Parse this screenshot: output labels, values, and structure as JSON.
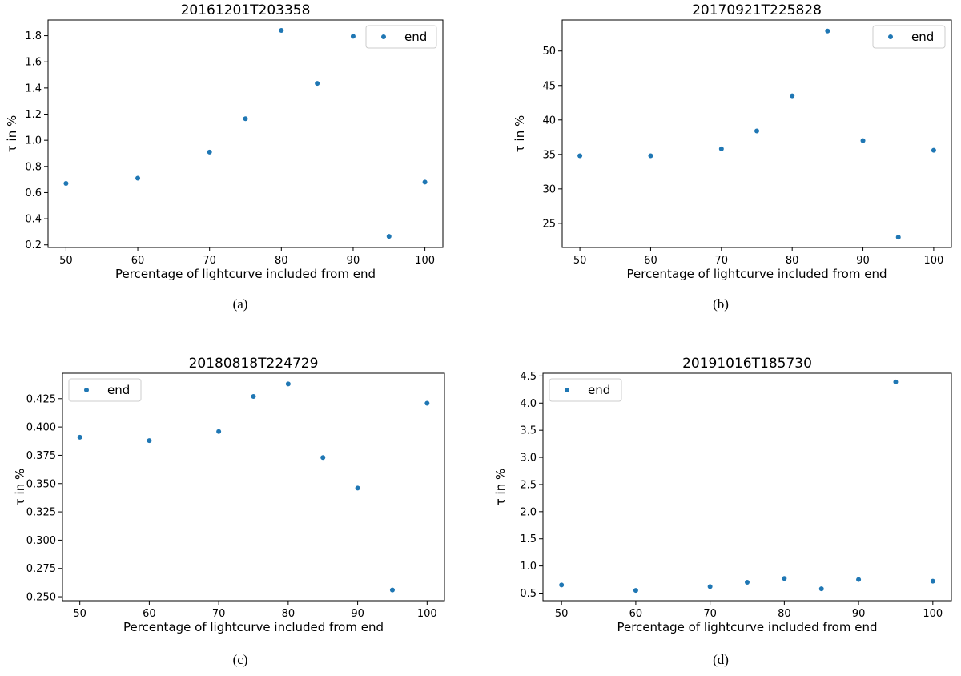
{
  "chart_data": [
    {
      "type": "scatter",
      "title": "20161201T203358",
      "xlabel": "Percentage of lightcurve included from end",
      "ylabel": "τ in %",
      "caption": "(a)",
      "legend": {
        "label": "end",
        "placement": "top-right"
      },
      "color": "#1f77b4",
      "xlim": [
        47.5,
        102.5
      ],
      "ylim": [
        0.18,
        1.92
      ],
      "xticks": [
        50,
        60,
        70,
        80,
        90,
        100
      ],
      "yticks": [
        0.2,
        0.4,
        0.6,
        0.8,
        1.0,
        1.2,
        1.4,
        1.6,
        1.8
      ],
      "ytick_labels": [
        "0.2",
        "0.4",
        "0.6",
        "0.8",
        "1.0",
        "1.2",
        "1.4",
        "1.6",
        "1.8"
      ],
      "x": [
        50,
        60,
        70,
        75,
        80,
        85,
        90,
        95,
        100
      ],
      "y": [
        0.67,
        0.71,
        0.91,
        1.165,
        1.84,
        1.435,
        1.795,
        0.265,
        0.68
      ]
    },
    {
      "type": "scatter",
      "title": "20170921T225828",
      "xlabel": "Percentage of lightcurve included from end",
      "ylabel": "τ in %",
      "caption": "(b)",
      "legend": {
        "label": "end",
        "placement": "top-right"
      },
      "color": "#1f77b4",
      "xlim": [
        47.5,
        102.5
      ],
      "ylim": [
        21.5,
        54.5
      ],
      "xticks": [
        50,
        60,
        70,
        80,
        90,
        100
      ],
      "yticks": [
        25,
        30,
        35,
        40,
        45,
        50
      ],
      "ytick_labels": [
        "25",
        "30",
        "35",
        "40",
        "45",
        "50"
      ],
      "x": [
        50,
        60,
        70,
        75,
        80,
        85,
        90,
        95,
        100
      ],
      "y": [
        34.8,
        34.8,
        35.8,
        38.4,
        43.5,
        52.9,
        37.0,
        23.0,
        35.6
      ]
    },
    {
      "type": "scatter",
      "title": "20180818T224729",
      "xlabel": "Percentage of lightcurve included from end",
      "ylabel": "τ in %",
      "caption": "(c)",
      "legend": {
        "label": "end",
        "placement": "top-left"
      },
      "color": "#1f77b4",
      "xlim": [
        47.5,
        102.5
      ],
      "ylim": [
        0.2465,
        0.4475
      ],
      "xticks": [
        50,
        60,
        70,
        80,
        90,
        100
      ],
      "yticks": [
        0.25,
        0.275,
        0.3,
        0.325,
        0.35,
        0.375,
        0.4,
        0.425
      ],
      "ytick_labels": [
        "0.250",
        "0.275",
        "0.300",
        "0.325",
        "0.350",
        "0.375",
        "0.400",
        "0.425"
      ],
      "x": [
        50,
        60,
        70,
        75,
        80,
        85,
        90,
        95,
        100
      ],
      "y": [
        0.391,
        0.388,
        0.396,
        0.427,
        0.438,
        0.373,
        0.346,
        0.256,
        0.421
      ]
    },
    {
      "type": "scatter",
      "title": "20191016T185730",
      "xlabel": "Percentage of lightcurve included from end",
      "ylabel": "τ in %",
      "caption": "(d)",
      "legend": {
        "label": "end",
        "placement": "top-left"
      },
      "color": "#1f77b4",
      "xlim": [
        47.5,
        102.5
      ],
      "ylim": [
        0.36,
        4.55
      ],
      "xticks": [
        50,
        60,
        70,
        80,
        90,
        100
      ],
      "yticks": [
        0.5,
        1.0,
        1.5,
        2.0,
        2.5,
        3.0,
        3.5,
        4.0,
        4.5
      ],
      "ytick_labels": [
        "0.5",
        "1.0",
        "1.5",
        "2.0",
        "2.5",
        "3.0",
        "3.5",
        "4.0",
        "4.5"
      ],
      "x": [
        50,
        60,
        70,
        75,
        80,
        85,
        90,
        95,
        100
      ],
      "y": [
        0.65,
        0.55,
        0.62,
        0.7,
        0.77,
        0.58,
        0.75,
        4.39,
        0.72
      ]
    }
  ]
}
